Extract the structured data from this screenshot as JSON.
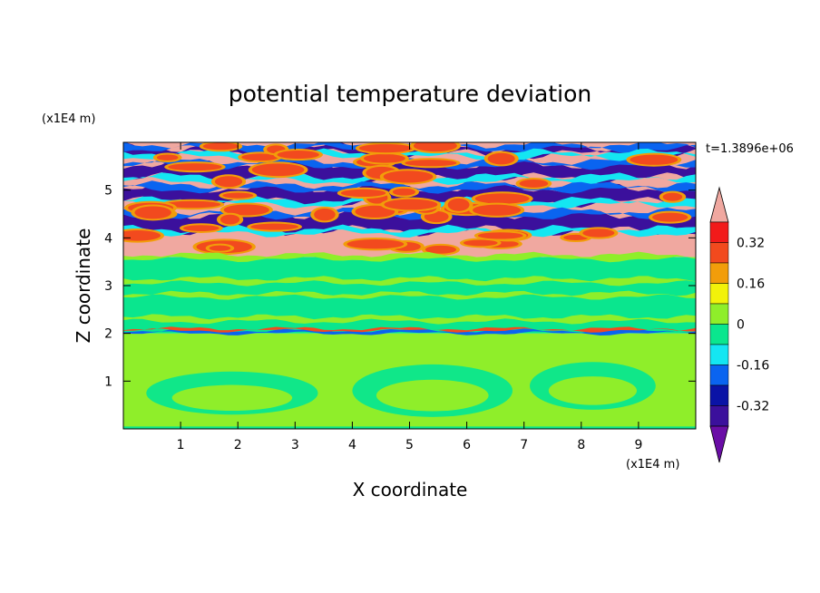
{
  "chart_data": {
    "type": "heatmap",
    "title": "potential temperature deviation",
    "xlabel": "X coordinate",
    "ylabel": "Z coordinate",
    "x_unit": "(x1E4 m)",
    "y_unit": "(x1E4 m)",
    "time_label": "t=1.3896e+06",
    "xlim": [
      0,
      10
    ],
    "ylim": [
      0,
      6
    ],
    "x_ticks": [
      "1",
      "2",
      "3",
      "4",
      "5",
      "6",
      "7",
      "8",
      "9"
    ],
    "y_ticks": [
      "1",
      "2",
      "3",
      "4",
      "5"
    ],
    "colorbar": {
      "tick_labels": [
        "0.32",
        "0.16",
        "0",
        "-0.16",
        "-0.32"
      ],
      "tick_values": [
        0.32,
        0.16,
        0,
        -0.16,
        -0.32
      ],
      "levels": [
        -0.4,
        -0.32,
        -0.24,
        -0.16,
        -0.08,
        0,
        0.08,
        0.16,
        0.24,
        0.32,
        0.4
      ],
      "colors": [
        "#6a0da6",
        "#3b109c",
        "#0a13a6",
        "#0a64f0",
        "#14e6f2",
        "#0ae68e",
        "#8fee2a",
        "#f2f20a",
        "#f29d0a",
        "#f24a1e",
        "#f21a1a",
        "#f0a8a0"
      ],
      "extend": "both"
    },
    "layers": [
      {
        "z_range": [
          5.6,
          6.0
        ],
        "value": "+0.4"
      },
      {
        "z_range": [
          5.2,
          5.6
        ],
        "value": "-0.4"
      },
      {
        "z_range": [
          4.5,
          5.2
        ],
        "value": "+0.4"
      },
      {
        "z_range": [
          4.1,
          4.5
        ],
        "value": "-0.4"
      },
      {
        "z_range": [
          3.6,
          4.1
        ],
        "value": "+0.4"
      },
      {
        "z_range": [
          2.0,
          3.6
        ],
        "value": "0"
      },
      {
        "z_range": [
          0.0,
          2.0
        ],
        "value": "0.04"
      }
    ]
  }
}
